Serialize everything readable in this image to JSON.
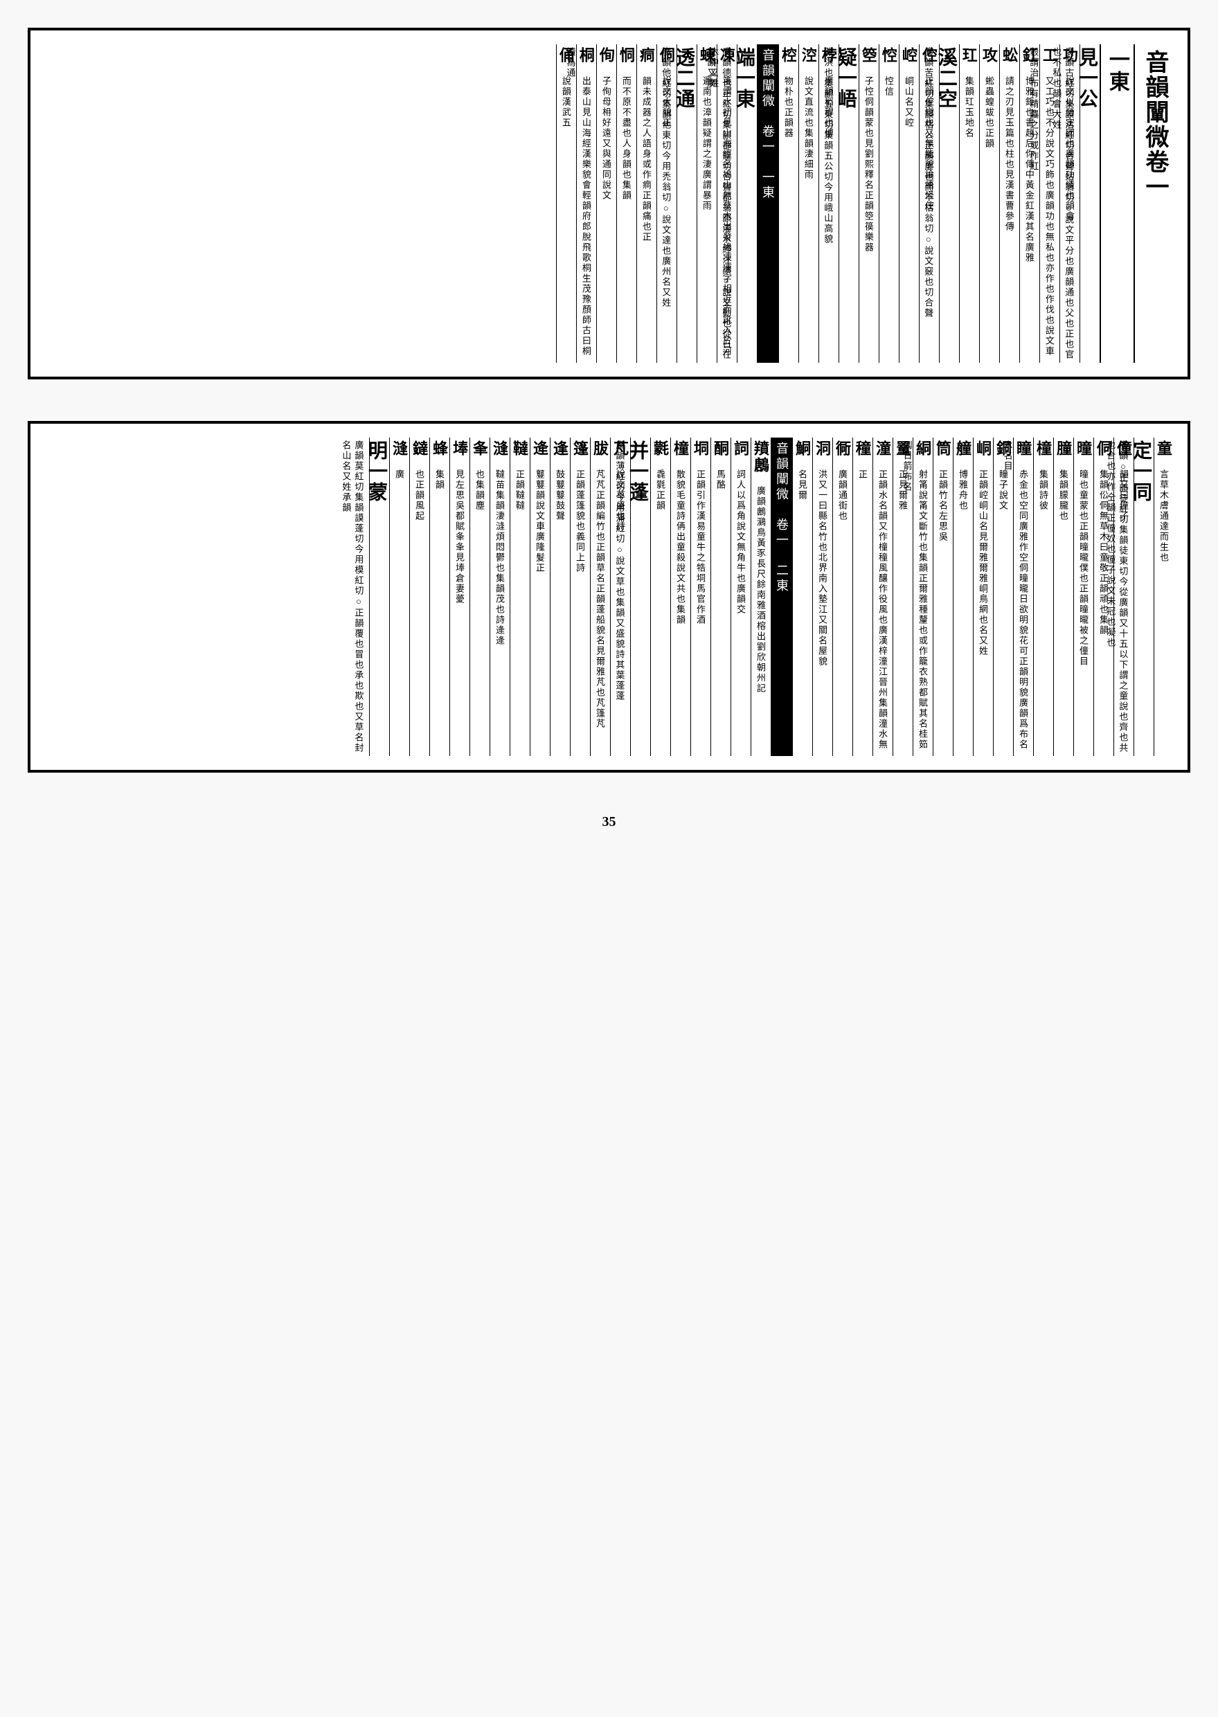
{
  "page_number": "35",
  "block1": {
    "title": "音韻闡微卷一",
    "section": "一東",
    "center_marker": "音韻闡微　卷一　一東",
    "entries": [
      {
        "head": "見一公",
        "text": "廣韻古紅切集韻沽紅切合聲姑翁切○說文平分也廣韻通也父也正也官也不私也韻會大姓"
      },
      {
        "head": "功",
        "text": "說文以勞定國也廣韻功績也韻會"
      },
      {
        "head": "工",
        "text": "又工巧也不分說文巧飾也廣韻功也無私也亦作也作伐也說文車轂謂治布有精麤之分或作紅"
      },
      {
        "head": "釭",
        "text": "博雅鉅也書趙后你傳中黃金釭漢其名廣雅"
      },
      {
        "head": "蚣",
        "text": "請之刃見玉篇也柱也見漢書曹參傳"
      },
      {
        "head": "攻",
        "text": "蜙蟲蝗蛂也正韻"
      },
      {
        "head": "玒",
        "text": "集韻玒玉地名"
      },
      {
        "head": "溪二空",
        "text": "廣韻苦紅切集韻枯公正韻虛也而不枯翁切○說文竅也切合聲"
      },
      {
        "head": "倥",
        "text": "正韻倥惚也又無能貌論語怪倥"
      },
      {
        "head": "崆",
        "text": "峒山名又崆"
      },
      {
        "head": "悾",
        "text": "悾信"
      },
      {
        "head": "箜",
        "text": "子悾侗韻蒙也見劉熙釋名正韻箜篌樂器"
      },
      {
        "head": "疑一峿",
        "text": "雅洪也集韻五東切集韻五公切今用峨山高貌"
      },
      {
        "head": "桲",
        "text": "廣韻稻稈也博"
      },
      {
        "head": "涳",
        "text": "說文直流也集韻淒細雨"
      },
      {
        "head": "椌",
        "text": "物朴也正韻器"
      },
      {
        "head": "端一東",
        "text": "廣韻德也正紅切集韻都籠切合聲都翁韻灌水經注讀○說文動也從日在木中又姓"
      },
      {
        "head": "凍",
        "text": "箋謂水初見山海經名鳩山無草木出發鳩凍凍字相近而訛入於河正韻又廣"
      },
      {
        "head": "蝀",
        "text": "邐南也漳韻疑謂之淒廣謂暴雨"
      },
      {
        "head": "透二通",
        "text": "廣韻他紅切集韻他東切今用禿翁切○說文達也廣州名又姓"
      },
      {
        "head": "侗",
        "text": "說文大貌正"
      },
      {
        "head": "痌",
        "text": "韻未成器之人語身或作痌正韻痛也正"
      },
      {
        "head": "恫",
        "text": "而不原不盡也人身韻也集韻"
      },
      {
        "head": "侚",
        "text": "子侚母枏好遠又與通同說文"
      },
      {
        "head": "桐",
        "text": "出泰山見山海經漢樂貌會輕韻府郎脫飛歌桐生茂豫顏師古曰桐讀為通"
      },
      {
        "head": "俑",
        "text": "說韻漢武五"
      }
    ]
  },
  "block2": {
    "center_marker": "音韻闡微　卷一　二東",
    "entries": [
      {
        "head": "童",
        "text": "言草木膚通達而生也"
      },
      {
        "head": "定一同",
        "text": "廣韻○正韻徒紅切集韻徒東切今從廣韻又十五以下謂之童說也齊也共也合也亦作仝韻正僮奴也僮子說文未冠也凝也"
      },
      {
        "head": "僮",
        "text": "韻又曰僮子"
      },
      {
        "head": "侗",
        "text": "集韻伀侗無草木曰童敬正韻頑也集韻"
      },
      {
        "head": "曈",
        "text": "曈也童蒙也正韻曈曨僕也正韻曈曨被之僮目"
      },
      {
        "head": "朣",
        "text": "集韻朦朧也"
      },
      {
        "head": "橦",
        "text": "集韻詩彼"
      },
      {
        "head": "瞳",
        "text": "赤金也空同廣雅作空侗曈曨日欲明貌花可正韻明貌廣韻爲布名木名目"
      },
      {
        "head": "銅",
        "text": "瞳子說文"
      },
      {
        "head": "峒",
        "text": "正韻崆峒山名見爾雅爾雅峒鳥網也名又姓"
      },
      {
        "head": "艟",
        "text": "博雅舟也"
      },
      {
        "head": "筒",
        "text": "正韻竹名左思吳"
      },
      {
        "head": "絧",
        "text": "射筩說筩文斷竹也集韻正爾雅種釐也或作籠衣熟都賦其名桂筎則日箭布名"
      },
      {
        "head": "罿",
        "text": "正見爾雅"
      },
      {
        "head": "潼",
        "text": "正韻水名韻又作橦穜風釀作役風也廣漢梓潼江晉州集韻潼水無"
      },
      {
        "head": "穜",
        "text": "正"
      },
      {
        "head": "衕",
        "text": "廣韻通街也"
      },
      {
        "head": "洞",
        "text": "洪又一曰縣名竹也北界南入墊江又關名屋貌"
      },
      {
        "head": "鮦",
        "text": "名見爾"
      },
      {
        "head": "羵鶶",
        "text": "廣韻鶶鸂鳥黃豕長尺餘南雅酒榕出劉欣朝州記"
      },
      {
        "head": "詞",
        "text": "詞人以爲角說文無角牛也廣韻交"
      },
      {
        "head": "酮",
        "text": "馬酪"
      },
      {
        "head": "垌",
        "text": "正韻引作漢易童牛之牿垌馬官作酒"
      },
      {
        "head": "橦",
        "text": "散貌毛童詩侢出童殺說文共也集韻"
      },
      {
        "head": "氋",
        "text": "毳氋正韻"
      },
      {
        "head": "并一蓬",
        "text": "廣韻薄紅切今用蒲紅切○說文草也集韻又盛貌詩其葉蓬蓬"
      },
      {
        "head": "芃",
        "text": "說文草盛也詩"
      },
      {
        "head": "胈",
        "text": "芃芃正韻編竹也正韻草名正韻蓬船貌名見爾雅芃也芃篷芃"
      },
      {
        "head": "篷",
        "text": "正韻蓬篷貌也義同上詩"
      },
      {
        "head": "逢",
        "text": "鼓鼟鼟鼓聲"
      },
      {
        "head": "逄",
        "text": "鼟鼟韻說文車廣隆髮正"
      },
      {
        "head": "韃",
        "text": "正韻韃韃"
      },
      {
        "head": "漨",
        "text": "韃苗集韻淒漨煩悶鬱也集韻茂也詩逄逄"
      },
      {
        "head": "夆",
        "text": "也集韻塵"
      },
      {
        "head": "埲",
        "text": "見左思吳都賦夆夆見埲倉妻薆"
      },
      {
        "head": "蜂",
        "text": "集韻"
      },
      {
        "head": "鐽",
        "text": "也正韻風起"
      },
      {
        "head": "漨",
        "text": "廣"
      },
      {
        "head": "明一蒙",
        "text": "廣韻莫紅切集韻謨蓬切今用模紅切○正韻覆也冒也承也欺也又草名封名山名又姓承韻"
      }
    ]
  }
}
